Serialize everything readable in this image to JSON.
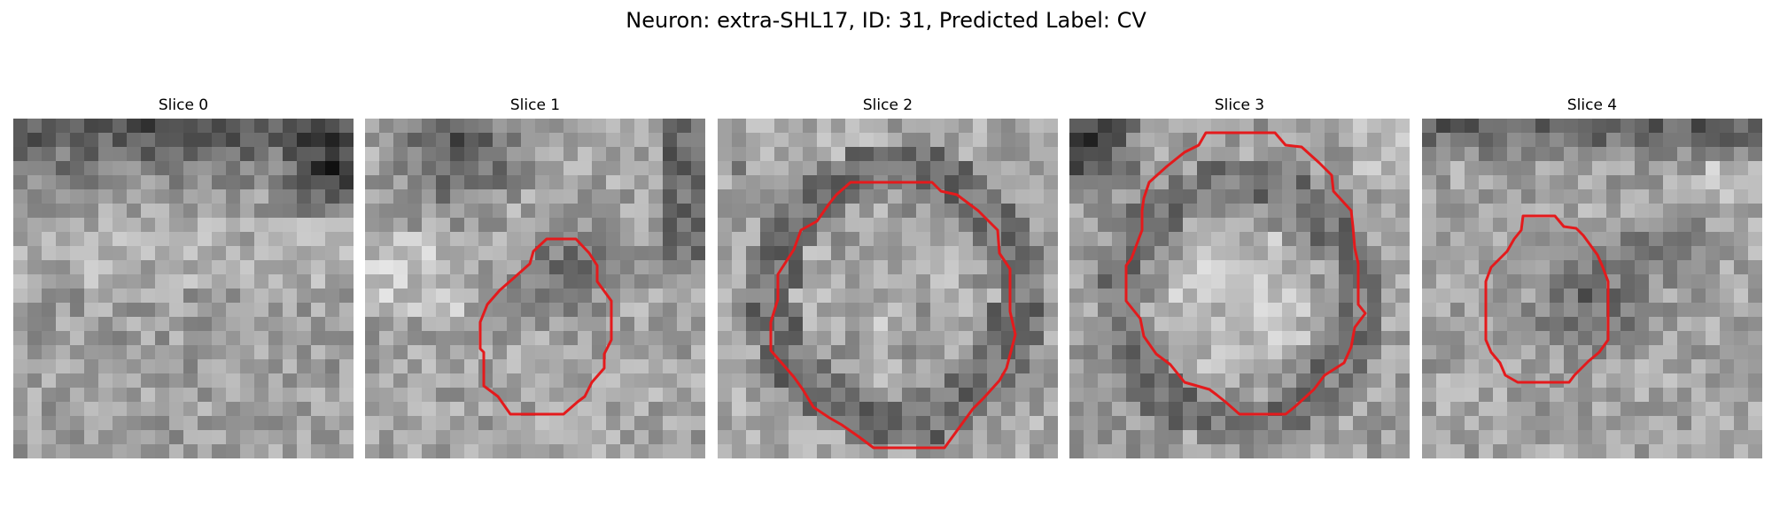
{
  "figure": {
    "title": "Neuron: extra-SHL17, ID: 31, Predicted Label: CV"
  },
  "contour_color": "#e41a1c",
  "panels": [
    {
      "title": "Slice 0",
      "contour": null
    },
    {
      "title": "Slice 1",
      "contour": "polygon"
    },
    {
      "title": "Slice 2",
      "contour": "polygon"
    },
    {
      "title": "Slice 3",
      "contour": "polygon"
    },
    {
      "title": "Slice 4",
      "contour": "polygon"
    }
  ]
}
